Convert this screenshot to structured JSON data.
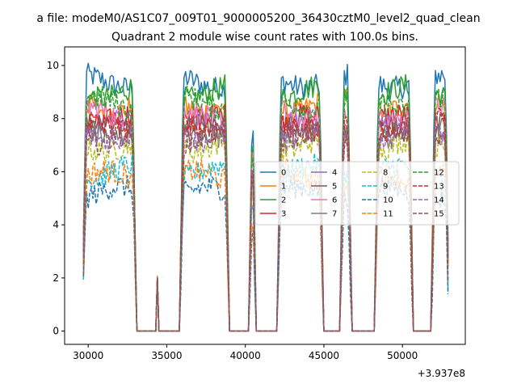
{
  "suptitle": "a file: modeM0/AS1C07_009T01_9000005200_36430cztM0_level2_quad_clean",
  "chart_data": {
    "type": "line",
    "title": "Quadrant 2 module wise count rates with 100.0s bins.",
    "xlabel": "",
    "ylabel": "",
    "x_offset_label": "+3.937e8",
    "xlim": [
      28500,
      54000
    ],
    "ylim": [
      -0.5,
      10.7
    ],
    "xticks": [
      30000,
      35000,
      40000,
      45000,
      50000
    ],
    "xtick_labels": [
      "30000",
      "35000",
      "40000",
      "45000",
      "50000"
    ],
    "yticks": [
      0,
      2,
      4,
      6,
      8,
      10
    ],
    "ytick_labels": [
      "0",
      "2",
      "4",
      "6",
      "8",
      "10"
    ],
    "segments": [
      {
        "start": 29700,
        "end": 33000
      },
      {
        "start": 35900,
        "end": 38900
      },
      {
        "start": 40300,
        "end": 40600
      },
      {
        "start": 42100,
        "end": 44900
      },
      {
        "start": 46100,
        "end": 46700
      },
      {
        "start": 48300,
        "end": 50600
      },
      {
        "start": 51900,
        "end": 52900
      }
    ],
    "spike_x": 34400,
    "spike_value": 2.0,
    "gap_value": 0,
    "legend_position": "center-right",
    "legend_columns": 4,
    "series": [
      {
        "name": "0",
        "color": "#1f77b4",
        "style": "solid",
        "level": 9.4
      },
      {
        "name": "1",
        "color": "#ff7f0e",
        "style": "solid",
        "level": 8.5
      },
      {
        "name": "2",
        "color": "#2ca02c",
        "style": "solid",
        "level": 9.0
      },
      {
        "name": "3",
        "color": "#d62728",
        "style": "solid",
        "level": 7.9
      },
      {
        "name": "4",
        "color": "#9467bd",
        "style": "solid",
        "level": 7.6
      },
      {
        "name": "5",
        "color": "#8c564b",
        "style": "solid",
        "level": 7.7
      },
      {
        "name": "6",
        "color": "#e377c2",
        "style": "solid",
        "level": 8.2
      },
      {
        "name": "7",
        "color": "#7f7f7f",
        "style": "solid",
        "level": 7.5
      },
      {
        "name": "8",
        "color": "#bcbd22",
        "style": "dashed",
        "level": 7.0
      },
      {
        "name": "9",
        "color": "#17becf",
        "style": "dashed",
        "level": 6.0
      },
      {
        "name": "10",
        "color": "#1f77b4",
        "style": "dashed",
        "level": 5.2
      },
      {
        "name": "11",
        "color": "#ff7f0e",
        "style": "dashed",
        "level": 5.8
      },
      {
        "name": "12",
        "color": "#2ca02c",
        "style": "dashed",
        "level": 8.6
      },
      {
        "name": "13",
        "color": "#d62728",
        "style": "dashed",
        "level": 7.8
      },
      {
        "name": "14",
        "color": "#9467bd",
        "style": "dashed",
        "level": 7.4
      },
      {
        "name": "15",
        "color": "#8c564b",
        "style": "dashed",
        "level": 7.3
      }
    ]
  }
}
